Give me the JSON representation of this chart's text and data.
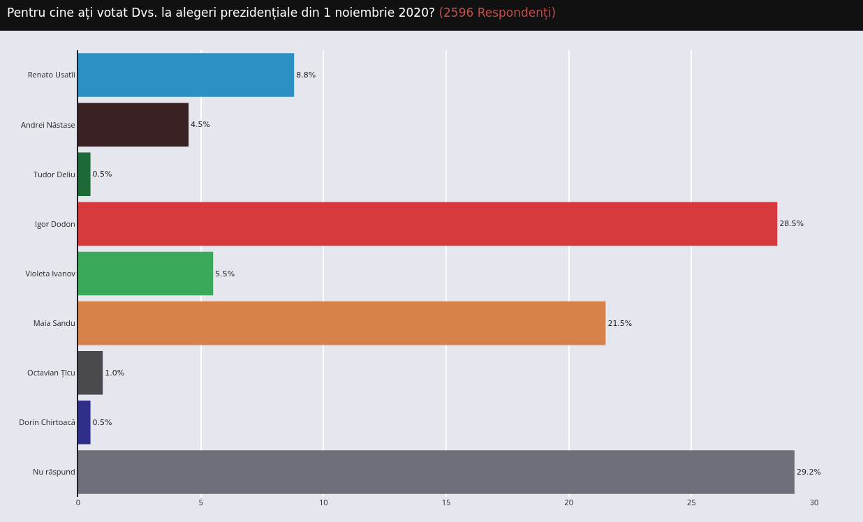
{
  "chart_data": {
    "type": "bar",
    "orientation": "horizontal",
    "title": "Pentru cine ați votat Dvs. la alegeri prezidențiale din 1 noiembrie 2020?",
    "subtitle": "(2596 Respondenți)",
    "categories": [
      "Renato Usatîi",
      "Andrei Năstase",
      "Tudor Deliu",
      "Igor Dodon",
      "Violeta Ivanov",
      "Maia Sandu",
      "Octavian Țîcu",
      "Dorin Chirtoacă",
      "Nu răspund"
    ],
    "values": [
      8.8,
      4.5,
      0.5,
      28.5,
      5.5,
      21.5,
      1.0,
      0.5,
      29.2
    ],
    "value_labels": [
      "8.8%",
      "4.5%",
      "0.5%",
      "28.5%",
      "5.5%",
      "21.5%",
      "1.0%",
      "0.5%",
      "29.2%"
    ],
    "colors": [
      "#2e8fc4",
      "#3a2224",
      "#1e6a37",
      "#d63a3c",
      "#3aa85a",
      "#d6824a",
      "#4a4a4e",
      "#2e2e8a",
      "#6e6e78"
    ],
    "xlim": [
      0,
      30
    ],
    "xticks": [
      0,
      5,
      10,
      15,
      20,
      25,
      30
    ],
    "grid": "x"
  }
}
